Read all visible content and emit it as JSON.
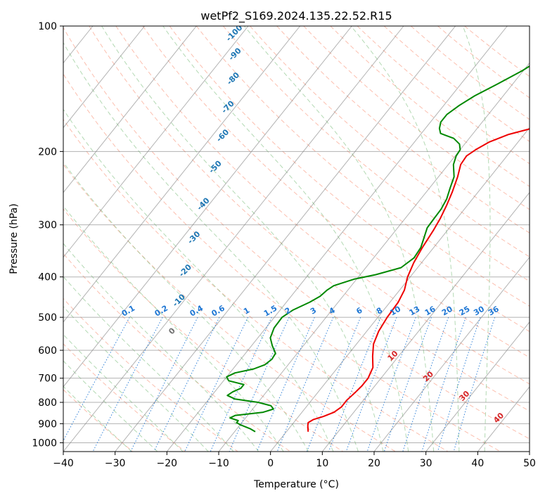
{
  "chart_data": {
    "type": "skew-t",
    "title": "wetPf2_S169.2024.135.22.52.R15",
    "xlabel": "Temperature (°C)",
    "ylabel": "Pressure (hPa)",
    "xlim": [
      -40,
      50
    ],
    "ylim": [
      1050,
      100
    ],
    "y_scale": "log",
    "x_ticks": [
      -40,
      -30,
      -20,
      -10,
      0,
      10,
      20,
      30,
      40,
      50
    ],
    "x_tick_labels": [
      "−40",
      "−30",
      "−20",
      "−10",
      "0",
      "10",
      "20",
      "30",
      "40",
      "50"
    ],
    "y_ticks": [
      100,
      200,
      300,
      400,
      500,
      600,
      700,
      800,
      900,
      1000
    ],
    "y_tick_labels": [
      "100",
      "200",
      "300",
      "400",
      "500",
      "600",
      "700",
      "800",
      "900",
      "1000"
    ],
    "grid": true,
    "isotherm_skew": true,
    "colors": {
      "temperature": "#ee0000",
      "dewpoint": "#008800",
      "dry_adiabat": "#fa8060",
      "moist_adiabat": "#80c080",
      "mixing_ratio": "#1f77d4",
      "isotherm": "#808080",
      "saturation_label": "#1f77b4",
      "isotherm_label": "#d62728"
    },
    "series": [
      {
        "name": "temperature",
        "points": [
          [
            941,
            4.2
          ],
          [
            910,
            3.2
          ],
          [
            895,
            2.8
          ],
          [
            880,
            3.3
          ],
          [
            865,
            4.8
          ],
          [
            845,
            6.2
          ],
          [
            820,
            6.8
          ],
          [
            790,
            6.8
          ],
          [
            760,
            7.2
          ],
          [
            730,
            7.5
          ],
          [
            700,
            7.5
          ],
          [
            660,
            6.8
          ],
          [
            620,
            5.0
          ],
          [
            580,
            3.3
          ],
          [
            540,
            2.3
          ],
          [
            500,
            1.8
          ],
          [
            460,
            1.6
          ],
          [
            430,
            0.9
          ],
          [
            400,
            -0.5
          ],
          [
            370,
            -1.5
          ],
          [
            340,
            -2.2
          ],
          [
            310,
            -2.7
          ],
          [
            290,
            -3.2
          ],
          [
            270,
            -4.0
          ],
          [
            250,
            -5.0
          ],
          [
            230,
            -6.3
          ],
          [
            215,
            -7.6
          ],
          [
            205,
            -7.8
          ],
          [
            198,
            -7.0
          ],
          [
            190,
            -5.6
          ],
          [
            182,
            -3.0
          ],
          [
            176,
            0.5
          ],
          [
            171,
            4.5
          ],
          [
            166,
            8.0
          ],
          [
            160,
            11.0
          ],
          [
            153,
            14.2
          ],
          [
            145,
            16.8
          ],
          [
            137,
            18.6
          ],
          [
            128,
            20.0
          ],
          [
            118,
            21.3
          ],
          [
            108,
            23.0
          ],
          [
            100,
            25.2
          ]
        ]
      },
      {
        "name": "dewpoint",
        "points": [
          [
            941,
            -6.0
          ],
          [
            925,
            -7.5
          ],
          [
            905,
            -10.0
          ],
          [
            895,
            -11.0
          ],
          [
            885,
            -11.0
          ],
          [
            872,
            -13.0
          ],
          [
            860,
            -12.4
          ],
          [
            845,
            -7.5
          ],
          [
            830,
            -6.0
          ],
          [
            815,
            -7.0
          ],
          [
            800,
            -10.0
          ],
          [
            785,
            -15.0
          ],
          [
            770,
            -17.0
          ],
          [
            755,
            -16.5
          ],
          [
            740,
            -15.5
          ],
          [
            725,
            -15.5
          ],
          [
            710,
            -19.0
          ],
          [
            695,
            -20.0
          ],
          [
            680,
            -19.0
          ],
          [
            665,
            -16.0
          ],
          [
            650,
            -14.5
          ],
          [
            630,
            -14.0
          ],
          [
            610,
            -14.2
          ],
          [
            585,
            -16.0
          ],
          [
            560,
            -17.6
          ],
          [
            530,
            -18.4
          ],
          [
            500,
            -18.5
          ],
          [
            480,
            -17.5
          ],
          [
            460,
            -15.5
          ],
          [
            445,
            -14.4
          ],
          [
            430,
            -14.0
          ],
          [
            420,
            -13.4
          ],
          [
            405,
            -10.5
          ],
          [
            395,
            -7.0
          ],
          [
            380,
            -3.2
          ],
          [
            360,
            -2.2
          ],
          [
            340,
            -2.5
          ],
          [
            320,
            -3.5
          ],
          [
            305,
            -4.3
          ],
          [
            290,
            -4.4
          ],
          [
            275,
            -4.5
          ],
          [
            260,
            -5.0
          ],
          [
            245,
            -6.0
          ],
          [
            230,
            -7.0
          ],
          [
            215,
            -9.0
          ],
          [
            205,
            -9.8
          ],
          [
            198,
            -10.0
          ],
          [
            192,
            -11.0
          ],
          [
            186,
            -13.0
          ],
          [
            181,
            -16.3
          ],
          [
            176,
            -17.3
          ],
          [
            170,
            -18.0
          ],
          [
            163,
            -18.0
          ],
          [
            155,
            -17.0
          ],
          [
            147,
            -15.5
          ],
          [
            138,
            -13.0
          ],
          [
            128,
            -10.2
          ],
          [
            118,
            -7.9
          ],
          [
            108,
            -5.3
          ],
          [
            100,
            -2.1
          ]
        ]
      }
    ],
    "mixing_ratio_labels": [
      "0.1",
      "0.2",
      "0.4",
      "0.6",
      "1",
      "1.5",
      "2",
      "3",
      "4",
      "6",
      "8",
      "10",
      "13",
      "16",
      "20",
      "25",
      "30",
      "36"
    ],
    "moist_adiabat_labels": [
      "-100",
      "-90",
      "-80",
      "-70",
      "-60",
      "-50",
      "-40",
      "-30",
      "-20",
      "-10",
      "0"
    ],
    "isotherm_labels": [
      "10",
      "20",
      "30",
      "40"
    ]
  }
}
